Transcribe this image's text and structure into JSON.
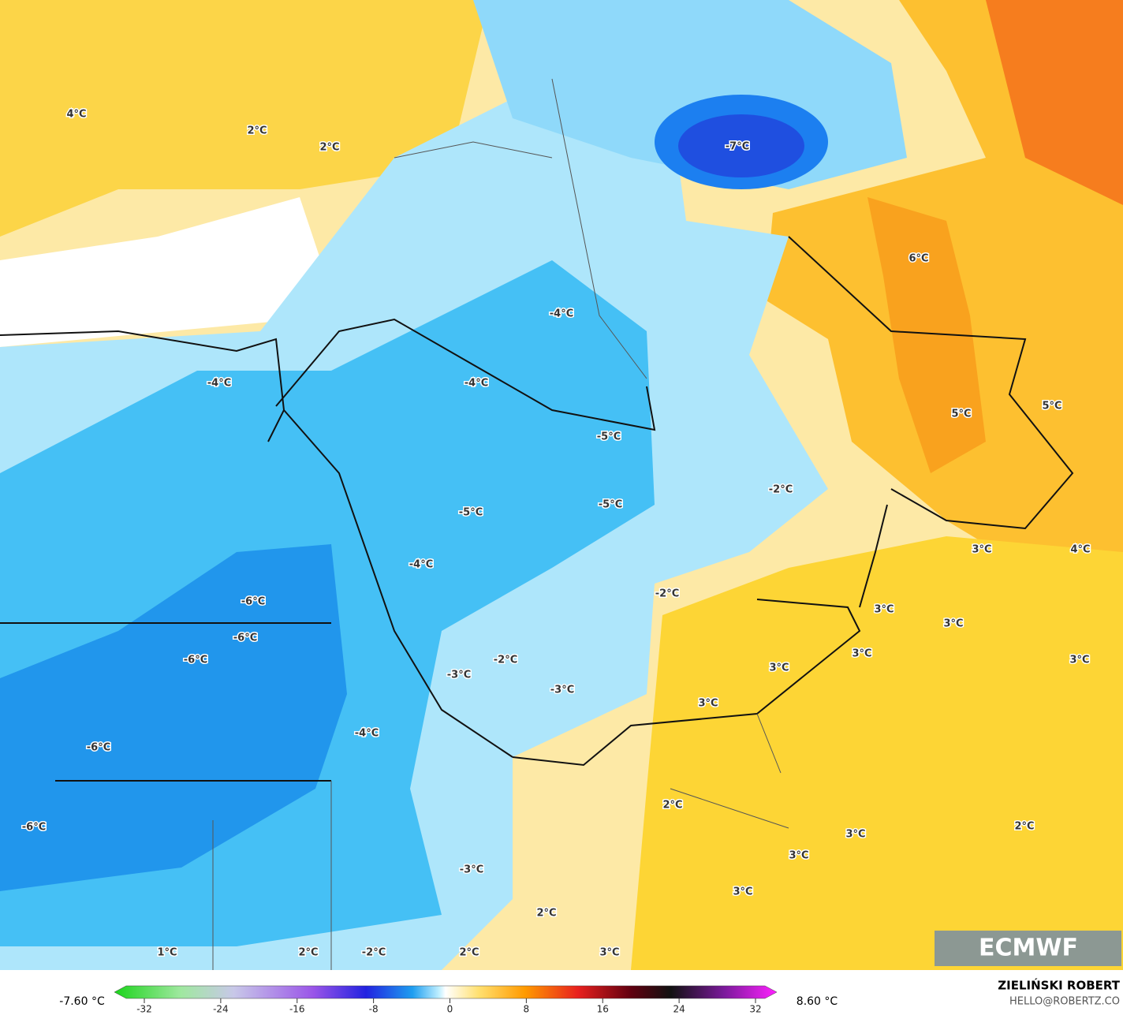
{
  "map": {
    "labels": [
      "4°C",
      "2°C",
      "2°C",
      "-7°C",
      "6°C",
      "-4°C",
      "-4°C",
      "-4°C",
      "-5°C",
      "5°C",
      "5°C",
      "-2°C",
      "-5°C",
      "-5°C",
      "3°C",
      "4°C",
      "-4°C",
      "-2°C",
      "-6°C",
      "3°C",
      "3°C",
      "-6°C",
      "-6°C",
      "3°C",
      "3°C",
      "-2°C",
      "3°C",
      "-3°C",
      "-3°C",
      "3°C",
      "-4°C",
      "-6°C",
      "2°C",
      "-6°C",
      "3°C",
      "2°C",
      "3°C",
      "-3°C",
      "3°C",
      "2°C",
      "1°C",
      "2°C",
      "-2°C",
      "2°C",
      "3°C"
    ]
  },
  "colorbar": {
    "min_label": "-7.60 °C",
    "max_label": "8.60 °C",
    "ticks": [
      -32,
      -24,
      -16,
      -8,
      0,
      8,
      16,
      24,
      32
    ]
  },
  "logo": "ECMWF",
  "credit": {
    "name": "ZIELIŃSKI ROBERT",
    "email": "HELLO@ROBERTZ.CO"
  }
}
